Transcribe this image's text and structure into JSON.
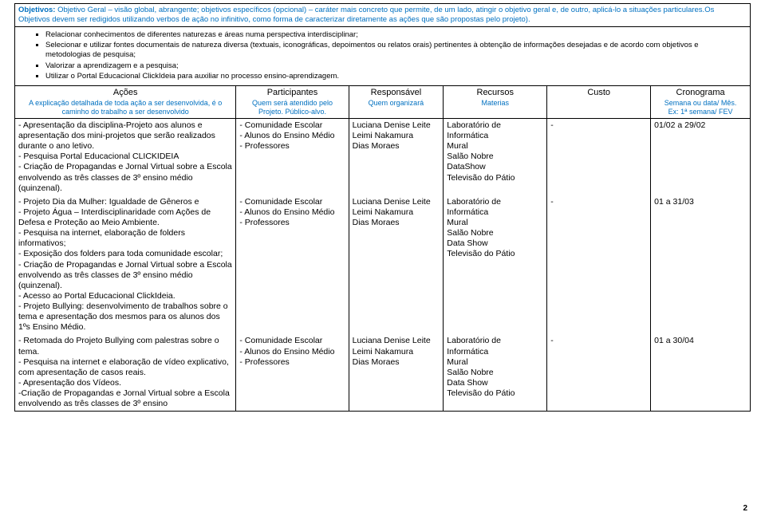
{
  "header": {
    "objetivos_lead": "Objetivos:",
    "objetivos_desc": " Objetivo Geral – visão global, abrangente; objetivos específicos (opcional) – caráter mais concreto que permite, de um lado, atingir o objetivo geral e, de outro, aplicá-lo a situações particulares.Os Objetivos devem ser redigidos utilizando verbos de ação no infinitivo, como forma de caracterizar diretamente as ações que são propostas pelo projeto)."
  },
  "bullets": [
    "Relacionar conhecimentos de diferentes naturezas e áreas numa perspectiva interdisciplinar;",
    "Selecionar e utilizar fontes documentais de natureza diversa (textuais, iconográficas, depoimentos ou relatos orais) pertinentes à obtenção de informações desejadas e de acordo com objetivos e metodologias de pesquisa;",
    "Valorizar a aprendizagem e a pesquisa;",
    "Utilizar o Portal Educacional ClickIdeia para auxiliar no processo ensino-aprendizagem."
  ],
  "columns": {
    "acoes_title": "Ações",
    "acoes_desc": "A explicação detalhada de toda ação a ser desenvolvida, é o caminho do trabalho a ser desenvolvido",
    "part_title": "Participantes",
    "part_desc": "Quem será atendido pelo Projeto. Público-alvo.",
    "resp_title": "Responsável",
    "resp_desc": "Quem organizará",
    "rec_title": "Recursos",
    "rec_desc": "Materias",
    "custo_title": "Custo",
    "custo_desc": "",
    "crono_title": "Cronograma",
    "crono_desc": "Semana ou data/ Mês.\nEx: 1ª semana/ FEV"
  },
  "rows": [
    {
      "acoes": "- Apresentação da disciplina-Projeto aos alunos e apresentação dos mini-projetos que serão realizados durante o ano letivo.\n- Pesquisa Portal Educacional CLICKIDEIA\n- Criação de Propagandas e Jornal Virtual sobre a Escola envolvendo as três classes de 3º ensino médio (quinzenal).",
      "part": "- Comunidade Escolar\n- Alunos do Ensino Médio\n- Professores",
      "resp": "Luciana Denise Leite\nLeimi Nakamura\nDias Moraes",
      "rec": "Laboratório de Informática\nMural\nSalão Nobre\nDataShow\nTelevisão do Pátio",
      "custo": "-",
      "crono": "01/02 a 29/02"
    },
    {
      "acoes": "- Projeto Dia da Mulher: Igualdade de Gêneros e\n- Projeto Água – Interdisciplinaridade com Ações de Defesa e Proteção ao Meio Ambiente.\n- Pesquisa na internet, elaboração de folders informativos;\n- Exposição dos folders para toda comunidade escolar;\n- Criação de Propagandas e Jornal Virtual sobre a Escola envolvendo as três classes de 3º ensino médio (quinzenal).\n- Acesso ao Portal Educacional ClickIdeia.\n- Projeto Bullying: desenvolvimento de trabalhos sobre o tema e apresentação dos mesmos para os alunos dos 1ºs Ensino Médio.",
      "part": "- Comunidade Escolar\n- Alunos do Ensino Médio\n- Professores",
      "resp": "Luciana Denise Leite\nLeimi Nakamura\nDias Moraes",
      "rec": "Laboratório de Informática\nMural\nSalão Nobre\nData Show\nTelevisão do Pátio",
      "custo": "-",
      "crono": "01 a 31/03"
    },
    {
      "acoes": "- Retomada do Projeto Bullying com palestras sobre o tema.\n- Pesquisa na internet e elaboração de vídeo explicativo, com apresentação de casos reais.\n- Apresentação dos Vídeos.\n-Criação de Propagandas e Jornal Virtual sobre a Escola envolvendo as três classes de 3º ensino",
      "part": "- Comunidade Escolar\n- Alunos do Ensino Médio\n- Professores",
      "resp": "Luciana Denise Leite\nLeimi Nakamura\nDias Moraes",
      "rec": "Laboratório de Informática\nMural\nSalão Nobre\nData Show\nTelevisão do Pátio",
      "custo": "-",
      "crono": "01 a 30/04"
    }
  ],
  "page_number": "2"
}
